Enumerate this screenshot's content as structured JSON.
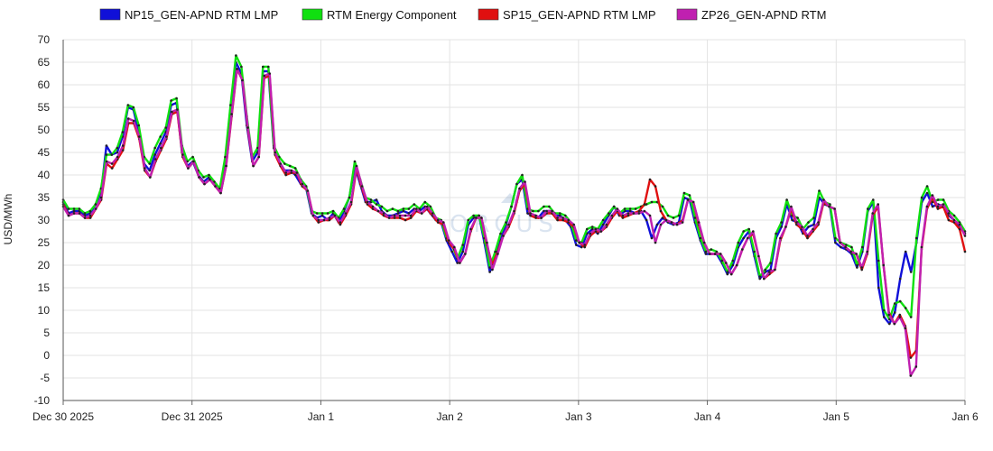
{
  "chart_data": {
    "type": "line",
    "ylabel": "USD/MWh",
    "ylim": [
      -10,
      70
    ],
    "yticks": [
      -10,
      -5,
      0,
      5,
      10,
      15,
      20,
      25,
      30,
      35,
      40,
      45,
      50,
      55,
      60,
      65,
      70
    ],
    "xlim": [
      0,
      168
    ],
    "xticks": [
      {
        "x": 0,
        "label": "Dec 30 2025"
      },
      {
        "x": 24,
        "label": "Dec 31 2025"
      },
      {
        "x": 48,
        "label": "Jan 1"
      },
      {
        "x": 72,
        "label": "Jan 2"
      },
      {
        "x": 96,
        "label": "Jan 3"
      },
      {
        "x": 120,
        "label": "Jan 4"
      },
      {
        "x": 144,
        "label": "Jan 5"
      },
      {
        "x": 168,
        "label": "Jan 6"
      }
    ],
    "grid": true,
    "legend_position": "top",
    "series": [
      {
        "name": "NP15_GEN-APND RTM LMP",
        "color": "#1010d8",
        "values": [
          34,
          31.5,
          32,
          32,
          31,
          31.5,
          33.5,
          36,
          46.5,
          44.5,
          45,
          48.5,
          55,
          54.5,
          49.5,
          42.5,
          41,
          44.5,
          47,
          49.5,
          55.5,
          56,
          45,
          42,
          43,
          40,
          38.5,
          39.5,
          38,
          37,
          43,
          55,
          65,
          62.5,
          51,
          43,
          45,
          63,
          63,
          46,
          43,
          41,
          41,
          40,
          38,
          37,
          31.5,
          30.5,
          31,
          30,
          31.5,
          29.5,
          32,
          35,
          42,
          38,
          34,
          34,
          34.5,
          32,
          31,
          31,
          31.5,
          32,
          31.5,
          32.5,
          32,
          33,
          31.5,
          30,
          29.5,
          25.5,
          23,
          20.5,
          23,
          29,
          30.5,
          31,
          25,
          18.5,
          22,
          25.5,
          29,
          33,
          38,
          39,
          31.5,
          31,
          30.5,
          32,
          32,
          31,
          31,
          30,
          28.5,
          24.5,
          24,
          27,
          28,
          27,
          29,
          31,
          33,
          31,
          32,
          32,
          31.5,
          32,
          30,
          26,
          29,
          30.5,
          29.5,
          29,
          29.5,
          35,
          34.5,
          29.5,
          25.5,
          22.5,
          22.5,
          22.5,
          20.5,
          18,
          20,
          24,
          26,
          27.5,
          22,
          17,
          18.5,
          19,
          26,
          28.5,
          33.5,
          30,
          29.5,
          27,
          28.5,
          29,
          35,
          33.5,
          33,
          25,
          24,
          23.5,
          22.5,
          19.5,
          23,
          32,
          34,
          15,
          8.5,
          7,
          9.5,
          17,
          23,
          18.5,
          25,
          34,
          36,
          33,
          33.5,
          33,
          31,
          30,
          28.5,
          27
        ]
      },
      {
        "name": "RTM Energy Component",
        "color": "#10e010",
        "values": [
          34.5,
          32.5,
          32.5,
          32.5,
          31.5,
          32,
          33.5,
          37,
          44.5,
          44.5,
          46,
          49.5,
          55.5,
          55,
          51,
          44,
          42.5,
          46,
          48.5,
          50.5,
          56.5,
          57,
          46.5,
          43,
          44,
          41,
          39.5,
          40,
          38.5,
          37,
          44,
          55.5,
          66.5,
          64,
          53,
          44,
          46,
          64,
          64,
          46.5,
          44,
          42.5,
          42,
          41.5,
          39,
          37.5,
          32,
          31.5,
          31.5,
          31.5,
          32,
          30.5,
          32.5,
          35,
          43,
          39,
          35,
          34.5,
          33.5,
          33,
          32,
          32.5,
          32,
          32.5,
          32.5,
          33.5,
          32.5,
          34,
          33,
          30.5,
          30,
          26,
          24.5,
          21.5,
          24.5,
          30,
          31,
          31,
          26,
          19.5,
          23,
          27,
          29.5,
          33,
          38,
          40,
          32.5,
          32,
          32,
          33,
          33,
          31.5,
          31.5,
          31,
          29.5,
          25.5,
          25,
          28,
          28.5,
          28,
          30,
          31.5,
          33,
          31.5,
          32.5,
          32.5,
          32.5,
          33,
          33.5,
          34,
          34,
          33,
          31,
          30.5,
          31,
          36,
          35.5,
          30.5,
          26,
          23,
          23.5,
          23,
          21,
          18.5,
          21,
          25,
          27.5,
          28,
          23,
          17.5,
          19,
          20.5,
          27,
          29.5,
          34.5,
          31,
          30.5,
          28,
          29.5,
          30.5,
          36.5,
          34,
          33.5,
          26,
          25,
          24.5,
          24,
          20,
          24,
          32.5,
          34.5,
          21,
          10,
          8,
          11.5,
          12,
          10.5,
          8.5,
          26,
          35,
          37.5,
          34,
          34.5,
          34.5,
          32,
          31,
          29.5,
          27.5
        ]
      },
      {
        "name": "SP15_GEN-APND RTM LMP",
        "color": "#e01010",
        "values": [
          33.5,
          31,
          31.5,
          31.5,
          30.5,
          30.5,
          32.5,
          34.5,
          42.5,
          41.5,
          43.5,
          45.5,
          51.5,
          51.5,
          48,
          41,
          39.5,
          43,
          45.5,
          48,
          53.5,
          54,
          44,
          41.5,
          43,
          39.5,
          38,
          39,
          37.5,
          36,
          42,
          53,
          63.5,
          61,
          50,
          42,
          44,
          61.5,
          62,
          44.5,
          42,
          40,
          40.5,
          40.5,
          37.5,
          36.5,
          31,
          29.5,
          30,
          30,
          31,
          29,
          31,
          33.5,
          41.5,
          37,
          33.5,
          32.5,
          32,
          31,
          30.5,
          30.5,
          30.5,
          30,
          30.5,
          32,
          31.5,
          32.5,
          31,
          29.5,
          29,
          25,
          23.5,
          20.5,
          22.5,
          27.5,
          30.5,
          30.5,
          24.5,
          20,
          23,
          26.5,
          28.5,
          31.5,
          36.5,
          38,
          31,
          30.5,
          30.5,
          31.5,
          31.5,
          30,
          30,
          29.5,
          28.5,
          25,
          24,
          26.5,
          27.5,
          27.5,
          28.5,
          30.5,
          32,
          30.5,
          31,
          31.5,
          32,
          33.5,
          39,
          37.5,
          32,
          30,
          29.5,
          29,
          30,
          34.5,
          34,
          29,
          25,
          22.5,
          22.5,
          22.5,
          20.5,
          18,
          20,
          23.5,
          26,
          27,
          22,
          17,
          18,
          19,
          25.5,
          28.5,
          32.5,
          29,
          28,
          26,
          27.5,
          29,
          34,
          33,
          32.5,
          25,
          24,
          23,
          22.5,
          19,
          22.5,
          31,
          33,
          20,
          9.5,
          7,
          9,
          6.5,
          -0.5,
          1,
          23.5,
          32.5,
          35,
          32.5,
          33,
          30,
          29.5,
          28,
          23
        ]
      },
      {
        "name": "ZP26_GEN-APND RTM",
        "color": "#c020b0",
        "values": [
          33,
          31,
          31.5,
          31.5,
          30.5,
          31,
          32.5,
          35,
          43,
          42.5,
          44,
          46.5,
          52.5,
          52,
          48.5,
          41.5,
          39.5,
          43.5,
          46,
          48.5,
          54,
          54.5,
          44.5,
          41.5,
          43,
          39.5,
          38,
          39,
          37.5,
          36,
          42,
          53.5,
          63.5,
          61,
          50.5,
          42,
          44,
          62,
          62.5,
          45,
          42.5,
          40.5,
          41,
          40.5,
          38,
          36.5,
          31,
          30,
          30,
          30.5,
          31,
          29.5,
          31.5,
          34,
          42,
          37.5,
          34,
          33,
          32,
          31.5,
          30.5,
          31,
          31,
          31,
          31,
          32.5,
          31.5,
          33,
          31.5,
          30,
          29.5,
          25.5,
          24,
          20.5,
          22.5,
          28,
          30.5,
          30.5,
          25,
          19,
          22.5,
          26.5,
          29,
          32,
          37,
          38.5,
          31.5,
          31,
          30.5,
          32,
          32,
          30.5,
          30.5,
          30,
          29,
          25,
          24.5,
          27,
          28,
          27.5,
          29,
          31,
          32.5,
          31,
          31.5,
          31.5,
          31.5,
          32,
          31,
          25,
          29,
          30,
          29.5,
          29,
          29.5,
          34.5,
          34,
          29.5,
          25,
          22.5,
          22.5,
          22.5,
          20.5,
          18,
          20,
          23.5,
          26,
          27.5,
          22,
          17,
          18.5,
          19,
          26,
          28.5,
          33,
          29.5,
          28.5,
          26.5,
          28,
          29.5,
          34.5,
          33,
          32.5,
          25,
          24,
          23,
          22.5,
          19.5,
          23,
          31.5,
          33.5,
          20,
          9,
          7,
          8.5,
          6,
          -4.5,
          -2.5,
          24,
          33,
          35.5,
          33,
          33.5,
          31.5,
          30,
          29,
          26.5
        ]
      }
    ]
  }
}
